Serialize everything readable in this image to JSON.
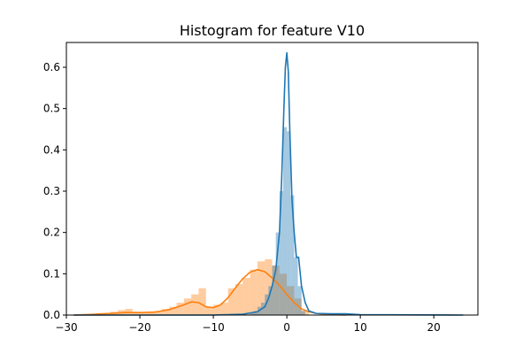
{
  "chart_data": {
    "type": "bar",
    "title": "Histogram for feature V10",
    "xlabel": "",
    "ylabel": "",
    "xlim": [
      -30,
      26
    ],
    "ylim": [
      0,
      0.66
    ],
    "x_ticks": [
      -30,
      -20,
      -10,
      0,
      10,
      20
    ],
    "y_ticks": [
      0.0,
      0.1,
      0.2,
      0.3,
      0.4,
      0.5,
      0.6
    ],
    "grid": false,
    "legend": "none",
    "series": [
      {
        "color": "#1f77b4",
        "bar_alpha": 0.4,
        "histogram": {
          "bin_edges": [
            -5.0,
            -4.5,
            -4.0,
            -3.5,
            -3.0,
            -2.5,
            -2.0,
            -1.5,
            -1.0,
            -0.5,
            0.0,
            0.5,
            1.0,
            1.5,
            2.0,
            2.5
          ],
          "densities": [
            0.005,
            0.01,
            0.02,
            0.03,
            0.05,
            0.07,
            0.12,
            0.2,
            0.3,
            0.455,
            0.445,
            0.29,
            0.14,
            0.07,
            0.01
          ]
        },
        "kde": {
          "x": [
            -29,
            -10,
            -6,
            -4,
            -3,
            -2.5,
            -2,
            -1.5,
            -1,
            -0.7,
            -0.4,
            -0.2,
            0,
            0.2,
            0.4,
            0.7,
            1,
            1.3,
            1.6,
            2,
            2.5,
            3,
            4,
            6,
            8,
            10,
            24
          ],
          "y": [
            0,
            0,
            0.002,
            0.008,
            0.02,
            0.04,
            0.07,
            0.11,
            0.2,
            0.33,
            0.5,
            0.6,
            0.635,
            0.59,
            0.45,
            0.28,
            0.2,
            0.14,
            0.14,
            0.07,
            0.03,
            0.01,
            0.004,
            0.003,
            0.003,
            0.001,
            0
          ]
        }
      },
      {
        "color": "#ff7f0e",
        "bar_alpha": 0.4,
        "histogram": {
          "bin_edges": [
            -26,
            -25,
            -24,
            -23,
            -22,
            -21,
            -20,
            -19,
            -18,
            -17,
            -16,
            -15,
            -14,
            -13,
            -12,
            -11,
            -10,
            -9,
            -8,
            -7,
            -6,
            -5,
            -4,
            -3,
            -2,
            -1,
            0,
            1,
            2,
            3
          ],
          "densities": [
            0.005,
            0.005,
            0.008,
            0.012,
            0.015,
            0.008,
            0.005,
            0.006,
            0.01,
            0.015,
            0.02,
            0.03,
            0.04,
            0.05,
            0.065,
            0.02,
            0.025,
            0.03,
            0.065,
            0.075,
            0.09,
            0.11,
            0.13,
            0.135,
            0.12,
            0.1,
            0.07,
            0.04,
            0.01
          ]
        },
        "kde": {
          "x": [
            -29,
            -26,
            -24,
            -22,
            -20,
            -18,
            -16,
            -14,
            -13,
            -12,
            -11,
            -10,
            -9,
            -8,
            -7,
            -6,
            -5,
            -4,
            -3,
            -2,
            -1,
            0,
            1,
            2,
            3,
            4,
            6,
            8
          ],
          "y": [
            0,
            0.002,
            0.004,
            0.006,
            0.006,
            0.007,
            0.013,
            0.025,
            0.032,
            0.03,
            0.02,
            0.018,
            0.025,
            0.042,
            0.066,
            0.088,
            0.104,
            0.11,
            0.105,
            0.09,
            0.072,
            0.05,
            0.03,
            0.015,
            0.008,
            0.004,
            0.001,
            0
          ]
        }
      }
    ]
  }
}
